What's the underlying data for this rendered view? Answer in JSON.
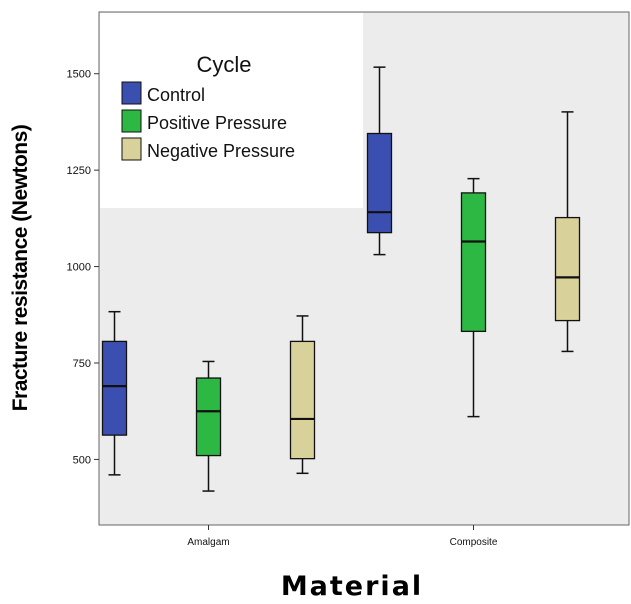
{
  "chart_data": {
    "type": "boxplot",
    "title": "",
    "xlabel": "Material",
    "ylabel": "Fracture resistance (Newtons)",
    "categories": [
      "Amalgam",
      "Composite"
    ],
    "ylim": [
      330,
      1660
    ],
    "yticks": [
      500,
      750,
      1000,
      1250,
      1500
    ],
    "legend": {
      "title": "Cycle",
      "position": "top-left"
    },
    "grid": false,
    "colors": {
      "plot_bg": "#ececec",
      "frame": "#666666",
      "legend_bg": "#ffffff"
    },
    "series": [
      {
        "name": "Control",
        "color": "#3b4fb0",
        "boxes": [
          {
            "min": 460,
            "q1": 563,
            "median": 690,
            "q3": 806,
            "max": 883
          },
          {
            "min": 1031,
            "q1": 1088,
            "median": 1141,
            "q3": 1345,
            "max": 1517
          }
        ]
      },
      {
        "name": "Positive Pressure",
        "color": "#2db843",
        "boxes": [
          {
            "min": 418,
            "q1": 510,
            "median": 625,
            "q3": 711,
            "max": 754
          },
          {
            "min": 611,
            "q1": 832,
            "median": 1065,
            "q3": 1191,
            "max": 1228
          }
        ]
      },
      {
        "name": "Negative Pressure",
        "color": "#d8d29a",
        "boxes": [
          {
            "min": 464,
            "q1": 502,
            "median": 605,
            "q3": 806,
            "max": 872
          },
          {
            "min": 780,
            "q1": 860,
            "median": 972,
            "q3": 1127,
            "max": 1401
          }
        ]
      }
    ]
  }
}
